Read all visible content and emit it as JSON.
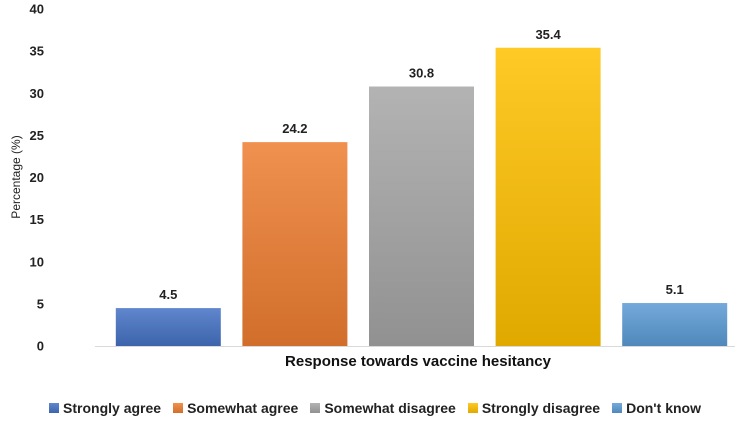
{
  "chart_data": {
    "type": "bar",
    "categories": [
      "Strongly agree",
      "Somewhat agree",
      "Somewhat disagree",
      "Strongly disagree",
      "Don't know"
    ],
    "values": [
      4.5,
      24.2,
      30.8,
      35.4,
      5.1
    ],
    "data_labels": [
      "4.5",
      "24.2",
      "30.8",
      "35.4",
      "5.1"
    ],
    "colors": [
      "#4472c4",
      "#ed7d31",
      "#a5a5a5",
      "#ffc000",
      "#5b9bd5"
    ],
    "xlabel": "Response towards vaccine hesitancy",
    "ylabel": "Percentage (%)",
    "ylim": [
      0,
      40
    ],
    "yticks": [
      "0",
      "5",
      "10",
      "15",
      "20",
      "25",
      "30",
      "35",
      "40"
    ],
    "grid": false,
    "legend_position": "bottom"
  }
}
